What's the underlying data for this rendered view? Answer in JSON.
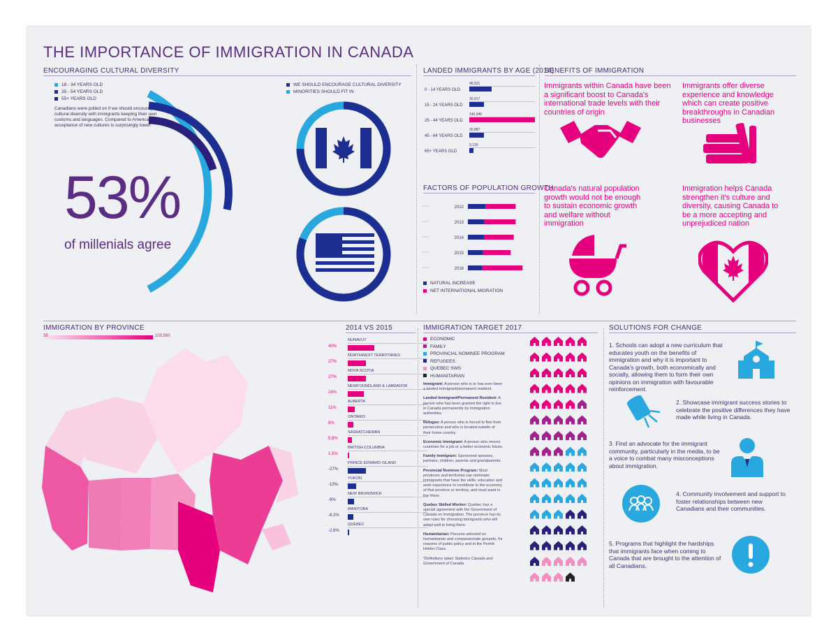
{
  "title": "THE IMPORTANCE OF IMMIGRATION IN CANADA",
  "colors": {
    "pink": "#e6007e",
    "navy": "#1c2e8f",
    "lightblue": "#29a8e0",
    "purple": "#5a2c82",
    "lightpink": "#f9b8d6"
  },
  "diversity": {
    "heading": "ENCOURAGING CULTURAL DIVERSITY",
    "legend": [
      "18 - 34 YEARS OLD",
      "35 - 54 YEARS OLD",
      "55+ YEARS OLD"
    ],
    "legend_colors": [
      "#29a8e0",
      "#1c2e8f",
      "#2a1f7a"
    ],
    "text": "Canadians were polled on if we should encourage cultural diversity with immigrants keeping their own customs and languages. Compared to Americans, their acceptance of new cultures is surprisingly lower.",
    "big_number": "53%",
    "big_caption": "of millenials agree",
    "flag_legend": [
      "WE SHOULD ENCOURAGE CULTURAL DIVERSITY",
      "MINORITIES SHOULD FIT IN"
    ]
  },
  "age": {
    "heading": "LANDED IMMIGRANTS BY AGE (2014)",
    "rows": [
      {
        "label": "0 - 14 YEARS OLD",
        "value_text": "48,521"
      },
      {
        "label": "15 - 24 YEARS OLD",
        "value_text": "30,917"
      },
      {
        "label": "25 - 44 YEARS OLD",
        "value_text": "140,946"
      },
      {
        "label": "45 - 64 YEARS OLD",
        "value_text": "30,887"
      },
      {
        "label": "65+ YEARS OLD",
        "value_text": "9,133"
      }
    ]
  },
  "growth": {
    "heading": "FACTORS OF POPULATION GROWTH",
    "legend": [
      "NATURAL INCREASE",
      "NET INTERNATIONAL MIGRATION"
    ],
    "years": [
      "2012",
      "2013",
      "2014",
      "2015",
      "2016"
    ]
  },
  "benefits": {
    "heading": "BENEFITS OF IMMIGRATION",
    "items": [
      "Immigrants within Canada have been a significant boost to Canada's international trade levels with their countries of origin",
      "Immigrants offer diverse experience and knowledge which can create positive breakthroughs in Canadian businesses",
      "Canada's natural population growth would not be enough to sustain economic growth and welfare without immigration",
      "Immigration helps Canada strengthen it's culture and diversity, causing Canada to be a more accepting and unprejudiced nation"
    ]
  },
  "province": {
    "heading": "IMMIGRATION BY PROVINCE",
    "scale_min": "35",
    "scale_max": "103,560",
    "compare_heading": "2014 VS 2015",
    "rows": [
      {
        "name": "NUNAVUT",
        "pct": "40%"
      },
      {
        "name": "NORTHWEST TERRITORIES",
        "pct": "27%"
      },
      {
        "name": "NOVA SCOTIA",
        "pct": "27%"
      },
      {
        "name": "NEWFOUNDLAND & LABRADOR",
        "pct": "24%"
      },
      {
        "name": "ALBERTA",
        "pct": "11%"
      },
      {
        "name": "ONTARIO",
        "pct": "8%"
      },
      {
        "name": "SASKATCHEWAN",
        "pct": "5.8%"
      },
      {
        "name": "BRITISH COLUMBIA",
        "pct": "1.5%"
      },
      {
        "name": "PRINCE EDWARD ISLAND",
        "pct": "-27%"
      },
      {
        "name": "YUKON",
        "pct": "-13%"
      },
      {
        "name": "NEW BRUNSWICK",
        "pct": "-9%"
      },
      {
        "name": "MANITOBA",
        "pct": "-8.2%"
      },
      {
        "name": "QUEBEC",
        "pct": "-2.6%"
      }
    ]
  },
  "target": {
    "heading": "IMMIGRATION TARGET 2017",
    "legend": [
      "ECONOMIC",
      "FAMILY",
      "PROVINCIAL NOMINEE PROGRAM",
      "REFUGEES",
      "QUEBEC SWS",
      "HUMANITARIAN"
    ],
    "legend_colors": [
      "#e6007e",
      "#a3218f",
      "#29a8e0",
      "#2a1f7a",
      "#f28fc0",
      "#222222"
    ],
    "definitions": [
      {
        "term": "Immigrant:",
        "text": " A person who is or has ever been a landed immigrant/permanent resident."
      },
      {
        "term": "Landed Immigrant/Permanent Resident:",
        "text": " A person who has been granted the right to live in Canada permanently by immigration authorities."
      },
      {
        "term": "Refugee:",
        "text": " A person who is forced to flee from persecution and who is located outside of their home country."
      },
      {
        "term": "Economic Immigrant:",
        "text": " A person who moves countries for a job or a better economic future."
      },
      {
        "term": "Family Immigrant:",
        "text": " Sponsored spouses, partners, children, parents and grandparents."
      },
      {
        "term": "Provincial Nominee Program:",
        "text": " Most provinces and territories can nominate immigrants that have the skills, education and work experience to contribute to the economy of that province or territory, and must want to live there."
      },
      {
        "term": "Quebec Skilled Worker:",
        "text": " Quebec has a special agreement with the Government of Canada on immigration. The province has its own rules for choosing immigrants who will adapt well to living there."
      },
      {
        "term": "Humanitarian:",
        "text": " Persons selected on humanitarian and compassionate grounds, for reasons of public policy and in the Permit Holder Class."
      }
    ],
    "footnote": "*Definitions taken Statistics Canada and Government of Canada"
  },
  "solutions": {
    "heading": "SOLUTIONS FOR CHANGE",
    "items": [
      "1. Schools can adopt a new curriculum that educates youth on the benefits of immigration and why it is important to Canada's growth, both economically and socially, allowing them to form their own opinions on immigration with favourable reinforcement.",
      "2. Showcase immigrant success stories to celebrate the positive differences they have made while living in Canada.",
      "3. Find an advocate for the immigrant community, particularly in the media, to be a voice to combat many misconceptions about immigration.",
      "4. Community involvement and support to foster relationships between new Canadians and their communities.",
      "5. Programs that highlight the hardships that immigrants face when coming to Canada that are brought to the attention of all Canadians."
    ],
    "icons": [
      "school-icon",
      "spotlight-icon",
      "advocate-icon",
      "community-icon",
      "exclamation-icon"
    ]
  },
  "chart_data": [
    {
      "type": "bar",
      "title": "LANDED IMMIGRANTS BY AGE (2014)",
      "categories": [
        "0 - 14 YEARS OLD",
        "15 - 24 YEARS OLD",
        "25 - 44 YEARS OLD",
        "45 - 64 YEARS OLD",
        "65+ YEARS OLD"
      ],
      "values": [
        48521,
        30917,
        140946,
        30887,
        9133
      ]
    },
    {
      "type": "bar",
      "title": "FACTORS OF POPULATION GROWTH",
      "categories": [
        "2012",
        "2013",
        "2014",
        "2015",
        "2016"
      ],
      "series": [
        {
          "name": "NATURAL INCREASE",
          "values": [
            140000,
            130000,
            130000,
            120000,
            115000
          ]
        },
        {
          "name": "NET INTERNATIONAL MIGRATION",
          "values": [
            240000,
            250000,
            235000,
            220000,
            320000
          ]
        }
      ],
      "stacked": true
    },
    {
      "type": "bar",
      "title": "2014 VS 2015",
      "categories": [
        "NUNAVUT",
        "NORTHWEST TERRITORIES",
        "NOVA SCOTIA",
        "NEWFOUNDLAND & LABRADOR",
        "ALBERTA",
        "ONTARIO",
        "SASKATCHEWAN",
        "BRITISH COLUMBIA",
        "PRINCE EDWARD ISLAND",
        "YUKON",
        "NEW BRUNSWICK",
        "MANITOBA",
        "QUEBEC"
      ],
      "values": [
        40,
        27,
        27,
        24,
        11,
        8,
        5.8,
        1.5,
        -27,
        -13,
        -9,
        -8.2,
        -2.6
      ]
    },
    {
      "type": "pie",
      "title": "ENCOURAGING CULTURAL DIVERSITY",
      "series": [
        {
          "name": "18 - 34 YEARS OLD",
          "values": [
            53
          ]
        },
        {
          "name": "35 - 54 YEARS OLD",
          "values": [
            40
          ]
        },
        {
          "name": "55+ YEARS OLD",
          "values": [
            33
          ]
        }
      ]
    },
    {
      "type": "pie",
      "title": "Canada vs USA",
      "series": [
        {
          "name": "WE SHOULD ENCOURAGE CULTURAL DIVERSITY",
          "values": [
            75,
            90
          ]
        },
        {
          "name": "MINORITIES SHOULD FIT IN",
          "values": [
            25,
            10
          ]
        }
      ]
    },
    {
      "type": "table",
      "title": "IMMIGRATION TARGET 2017",
      "categories": [
        "ECONOMIC",
        "FAMILY",
        "PROVINCIAL NOMINEE PROGRAM",
        "REFUGEES",
        "QUEBEC SWS",
        "HUMANITARIAN"
      ],
      "values": [
        24,
        14,
        20,
        13,
        7,
        1
      ]
    }
  ]
}
